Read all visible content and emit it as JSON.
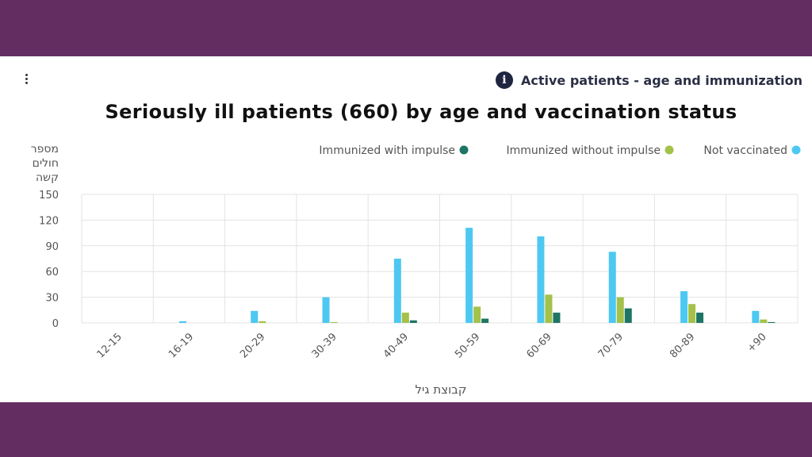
{
  "header": {
    "info_title": "Active patients - age and immunization",
    "info_icon": "info-icon",
    "menu_icon": "vertical-dots-icon"
  },
  "chart_data": {
    "type": "bar",
    "title": "Seriously ill patients (660) by age and vaccination status",
    "ylabel_lines": [
      "מספר",
      "חולים",
      "קשה"
    ],
    "xlabel": "קבוצת גיל",
    "ylim": [
      0,
      150
    ],
    "yticks": [
      0,
      30,
      60,
      90,
      120,
      150
    ],
    "grid": true,
    "legend_position": "top-right",
    "categories": [
      "12-15",
      "16-19",
      "20-29",
      "30-39",
      "40-49",
      "50-59",
      "60-69",
      "70-79",
      "80-89",
      "+90"
    ],
    "series": [
      {
        "name": "Not vaccinated",
        "color": "#4dc8f2",
        "values": [
          0,
          2,
          14,
          30,
          75,
          111,
          101,
          83,
          37,
          14
        ]
      },
      {
        "name": "Immunized without impulse",
        "color": "#a4c14a",
        "values": [
          0,
          0,
          2,
          1,
          12,
          19,
          33,
          30,
          22,
          4
        ]
      },
      {
        "name": "Immunized with impulse",
        "color": "#1f7565",
        "values": [
          0,
          0,
          0,
          0,
          3,
          5,
          12,
          17,
          12,
          1
        ]
      }
    ],
    "legend_order": [
      "Immunized with impulse",
      "Immunized without impulse",
      "Not vaccinated"
    ]
  }
}
